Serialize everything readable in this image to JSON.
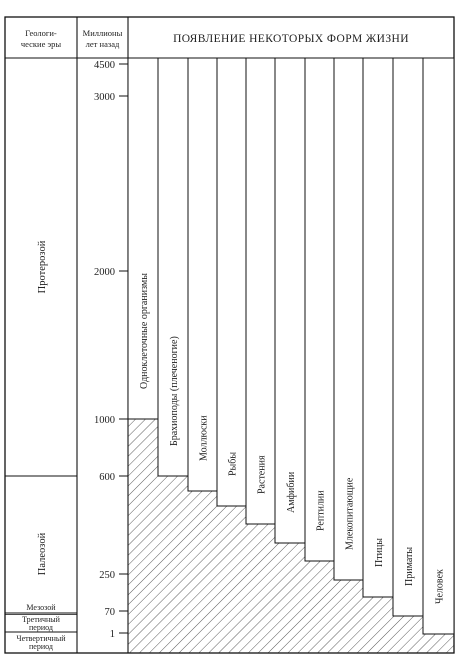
{
  "header": {
    "eras_title_line1": "Геологи-",
    "eras_title_line2": "ческие эры",
    "years_title_line1": "Миллионы",
    "years_title_line2": "лет назад",
    "main_title": "ПОЯВЛЕНИЕ НЕКОТОРЫХ ФОРМ ЖИЗНИ"
  },
  "eras": [
    {
      "name": "Протерозой"
    },
    {
      "name": "Палеозой"
    },
    {
      "name": "Мезозой"
    },
    {
      "name": "Третичный",
      "name2": "период"
    },
    {
      "name": "Четвертичный",
      "name2": "период"
    }
  ],
  "time_ticks": [
    "4500",
    "3000",
    "2000",
    "1000",
    "600",
    "250",
    "70",
    "1"
  ],
  "life_forms": [
    {
      "name": "Одноклеточные организмы",
      "appeared_mya": 1000
    },
    {
      "name": "Брахиоподы (плеченогие)",
      "appeared_mya": 600
    },
    {
      "name": "Моллюски"
    },
    {
      "name": "Рыбы"
    },
    {
      "name": "Растения"
    },
    {
      "name": "Амфибии"
    },
    {
      "name": "Рептилии"
    },
    {
      "name": "Млекопитающие"
    },
    {
      "name": "Птицы"
    },
    {
      "name": "Приматы"
    },
    {
      "name": "Человек"
    }
  ]
}
